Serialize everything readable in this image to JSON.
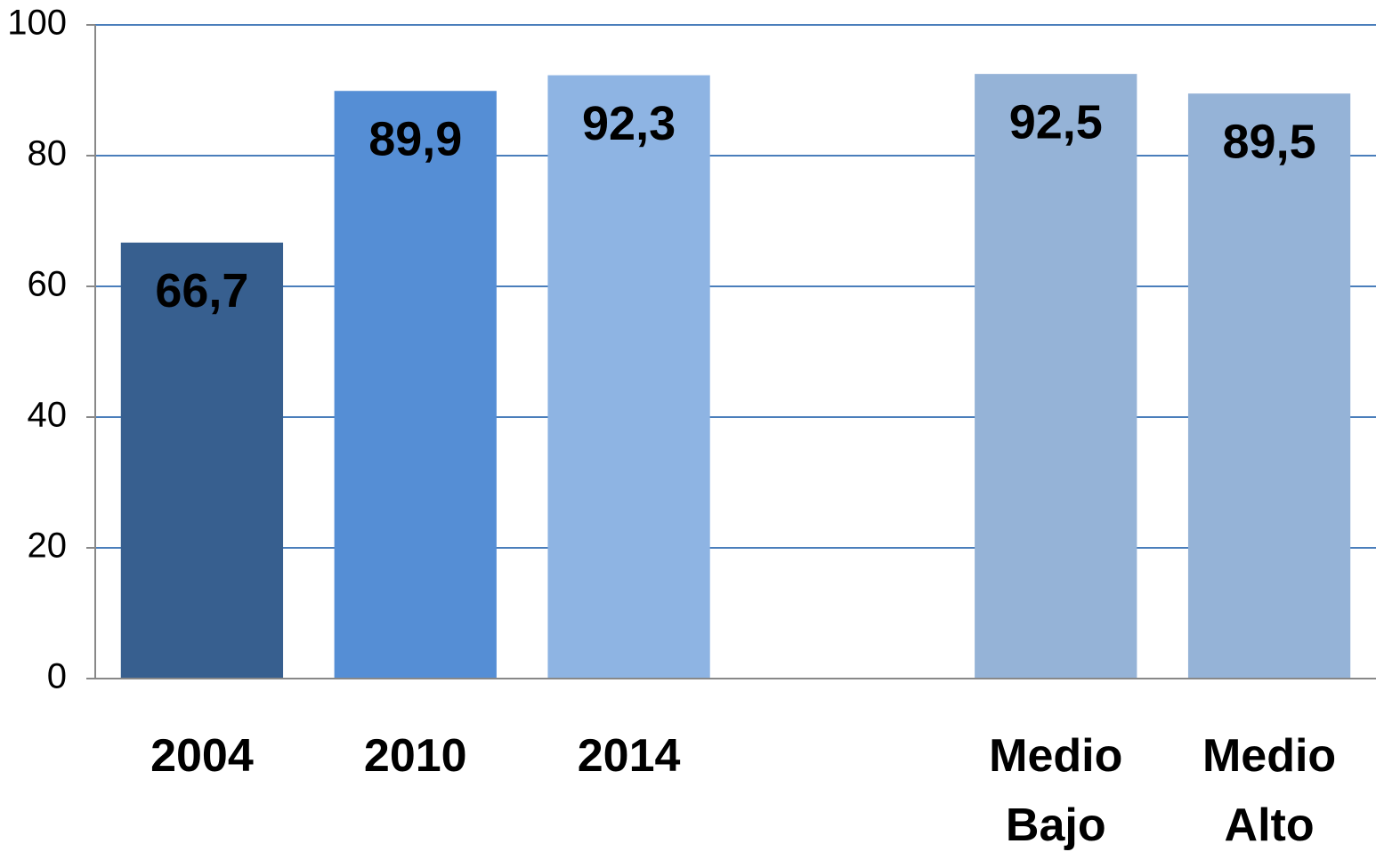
{
  "chart_data": {
    "type": "bar",
    "categories": [
      "2004",
      "2010",
      "2014",
      null,
      "Medio Bajo",
      "Medio Alto"
    ],
    "values": [
      66.7,
      89.9,
      92.3,
      null,
      92.5,
      89.5
    ],
    "value_labels": [
      "66,7",
      "89,9",
      "92,3",
      null,
      "92,5",
      "89,5"
    ],
    "colors": [
      "#375f8f",
      "#558ed5",
      "#8eb4e3",
      null,
      "#95b3d7",
      "#95b3d7"
    ],
    "ylim": [
      0,
      100
    ],
    "yticks": [
      0,
      20,
      40,
      60,
      80,
      100
    ],
    "grid": true
  }
}
